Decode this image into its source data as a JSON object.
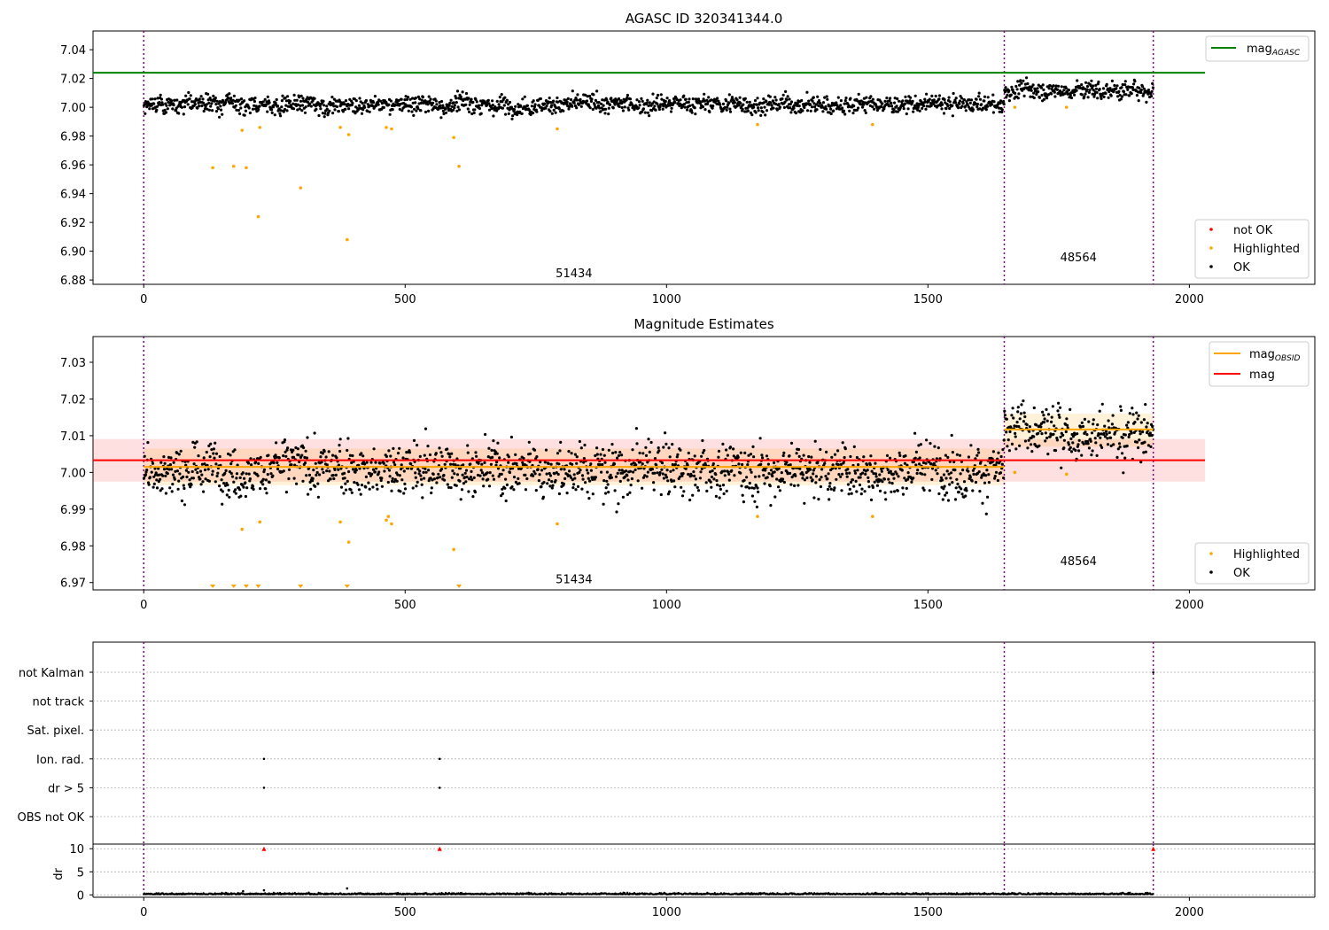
{
  "chart_data": [
    {
      "type": "scatter",
      "title": "AGASC ID 320341344.0",
      "xlim": [
        -97,
        2240
      ],
      "ylim": [
        6.877,
        7.053
      ],
      "xticks": [
        0,
        500,
        1000,
        1500,
        2000
      ],
      "yticks": [
        6.88,
        6.9,
        6.92,
        6.94,
        6.96,
        6.98,
        7.0,
        7.02,
        7.04
      ],
      "ytick_decimals": 2,
      "obs_boundaries": [
        0,
        1646,
        1931
      ],
      "obs_labels": [
        {
          "text": "51434",
          "x": 823,
          "y": 6.885
        },
        {
          "text": "48564",
          "x": 1788,
          "y": 6.896
        }
      ],
      "reference_line": {
        "name": "mag_AGASC",
        "x": [
          -97,
          2030
        ],
        "y": 7.024,
        "color": "#008000"
      },
      "ok_segments": [
        {
          "x": [
            0,
            1646
          ],
          "base": 7.002,
          "spread": 0.004
        },
        {
          "x": [
            1646,
            1931
          ],
          "base": 7.012,
          "spread": 0.004
        }
      ],
      "highlighted_points": {
        "x": [
          132,
          172,
          196,
          219,
          188,
          222,
          300,
          376,
          389,
          392,
          464,
          474,
          593,
          603,
          791,
          1174,
          1394,
          1666,
          1765
        ],
        "y": [
          6.958,
          6.959,
          6.958,
          6.924,
          6.984,
          6.986,
          6.944,
          6.986,
          6.908,
          6.981,
          6.986,
          6.985,
          6.979,
          6.959,
          6.985,
          6.988,
          6.988,
          7.0,
          7.0
        ]
      },
      "legend": {
        "position": "lower right",
        "entries": [
          "not OK",
          "Highlighted",
          "OK"
        ]
      },
      "legend_top": {
        "position": "upper right",
        "entries": [
          "mag_AGASC"
        ]
      },
      "colors": {
        "ok": "#000000",
        "highlighted": "#ffa500",
        "not_ok": "#ff0000",
        "boundary": "#800080"
      }
    },
    {
      "type": "scatter",
      "title": "Magnitude Estimates",
      "xlim": [
        -97,
        2240
      ],
      "ylim": [
        6.968,
        7.037
      ],
      "xticks": [
        0,
        500,
        1000,
        1500,
        2000
      ],
      "yticks": [
        6.97,
        6.98,
        6.99,
        7.0,
        7.01,
        7.02,
        7.03
      ],
      "ytick_decimals": 2,
      "obs_boundaries": [
        0,
        1646,
        1931
      ],
      "obs_labels": [
        {
          "text": "51434",
          "x": 823,
          "y": 6.971
        },
        {
          "text": "48564",
          "x": 1788,
          "y": 6.976
        }
      ],
      "mag_line": {
        "name": "mag",
        "x": [
          -97,
          2030
        ],
        "y": 7.0033,
        "band": [
          6.9975,
          7.0091
        ],
        "color": "#ff0000"
      },
      "mag_obsid": {
        "name": "mag_OBSID",
        "color": "#ffa500",
        "segments": [
          {
            "x": [
              0,
              1646
            ],
            "y": 7.0015,
            "band": [
              6.9965,
              7.0065
            ]
          },
          {
            "x": [
              1646,
              1931
            ],
            "y": 7.0117,
            "band": [
              7.007,
              7.016
            ]
          }
        ]
      },
      "ok_segments": [
        {
          "x": [
            0,
            1646
          ],
          "base": 7.001,
          "spread": 0.0045
        },
        {
          "x": [
            1646,
            1931
          ],
          "base": 7.011,
          "spread": 0.0045
        }
      ],
      "highlighted_points": {
        "x": [
          188,
          222,
          376,
          392,
          464,
          468,
          474,
          593,
          791,
          1174,
          1394,
          1666,
          1765
        ],
        "y": [
          6.9845,
          6.9865,
          6.9865,
          6.981,
          6.987,
          6.988,
          6.986,
          6.979,
          6.986,
          6.988,
          6.988,
          7.0,
          6.9995
        ]
      },
      "clipped_low_markers": [
        132,
        172,
        196,
        219,
        300,
        389,
        603
      ],
      "legend": {
        "position": "lower right",
        "entries": [
          "Highlighted",
          "OK"
        ]
      },
      "legend_top": {
        "position": "upper right",
        "entries": [
          "mag_OBSID",
          "mag"
        ]
      },
      "colors": {
        "ok": "#000000",
        "highlighted": "#ffa500",
        "boundary": "#800080"
      }
    },
    {
      "type": "scatter",
      "title": "",
      "xlim": [
        -97,
        2240
      ],
      "xticks": [
        0,
        500,
        1000,
        1500,
        2000
      ],
      "flag_rows": [
        "not Kalman",
        "not track",
        "Sat. pixel.",
        "Ion. rad.",
        "dr > 5",
        "OBS not OK"
      ],
      "flag_points": [
        {
          "row": "Ion. rad.",
          "x": [
            230,
            566
          ]
        },
        {
          "row": "dr > 5",
          "x": [
            230,
            566
          ]
        },
        {
          "row": "not Kalman",
          "x": [
            1931
          ]
        }
      ],
      "dr_panel": {
        "ylabel": "dr",
        "ylim": [
          -0.5,
          11
        ],
        "yticks": [
          0,
          5,
          10
        ],
        "clipped_high_markers": [
          230,
          566,
          1931
        ],
        "scattered_points": {
          "x": [
            190,
            230,
            389
          ],
          "y": [
            0.8,
            1.0,
            1.4
          ]
        }
      },
      "obs_boundaries": [
        0,
        1646,
        1931
      ],
      "colors": {
        "ok": "#000000",
        "not_ok": "#ff0000",
        "boundary": "#800080",
        "grid": "#b0b0b0"
      }
    }
  ],
  "legend_labels": {
    "not_ok": "not OK",
    "highlighted": "Highlighted",
    "ok": "OK",
    "mag_base": "mag",
    "agasc_sub": "AGASC",
    "obsid_sub": "OBSID"
  }
}
